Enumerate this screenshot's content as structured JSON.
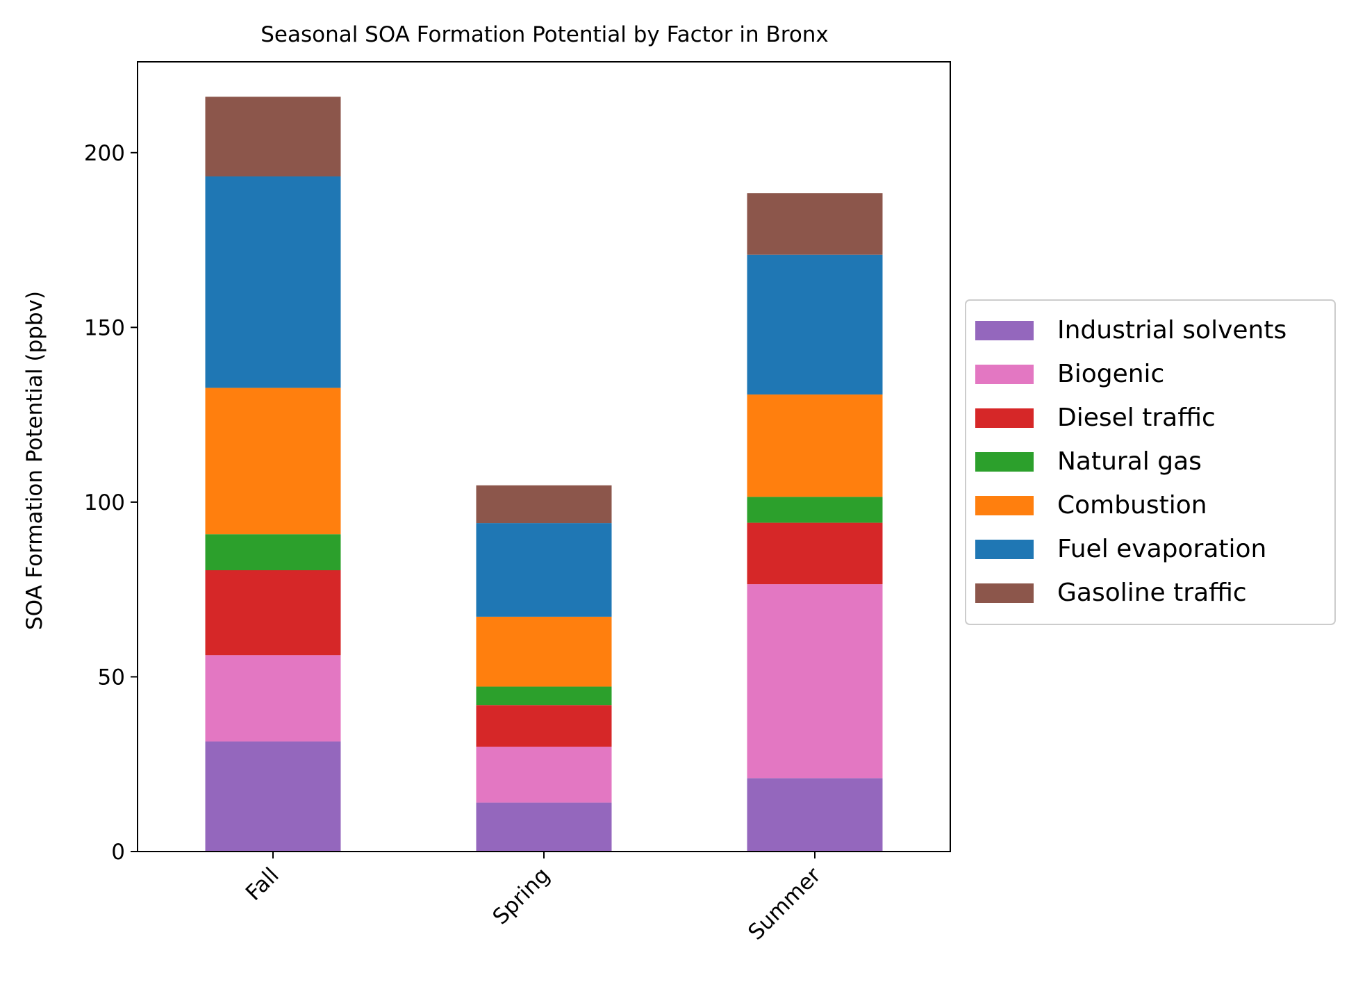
{
  "chart_data": {
    "type": "bar",
    "stacked": true,
    "title": "Seasonal SOA Formation Potential by Factor in Bronx",
    "xlabel": "",
    "ylabel": "SOA Formation Potential (ppbv)",
    "ylim": [
      0,
      226
    ],
    "yticks": [
      0,
      50,
      100,
      150,
      200
    ],
    "grid": false,
    "legend_position": "right",
    "categories": [
      "Fall",
      "Spring",
      "Summer"
    ],
    "series": [
      {
        "name": "Industrial solvents",
        "color": "#9467bd",
        "values": [
          31.5,
          14.0,
          21.0
        ]
      },
      {
        "name": "Biogenic",
        "color": "#e377c2",
        "values": [
          24.7,
          16.0,
          55.5
        ]
      },
      {
        "name": "Diesel traffic",
        "color": "#d62728",
        "values": [
          24.3,
          11.9,
          17.6
        ]
      },
      {
        "name": "Natural gas",
        "color": "#2ca02c",
        "values": [
          10.3,
          5.3,
          7.4
        ]
      },
      {
        "name": "Combustion",
        "color": "#ff7f0e",
        "values": [
          41.9,
          20.0,
          29.3
        ]
      },
      {
        "name": "Fuel evaporation",
        "color": "#1f77b4",
        "values": [
          60.5,
          26.8,
          40.0
        ]
      },
      {
        "name": "Gasoline traffic",
        "color": "#8c564b",
        "values": [
          22.8,
          10.8,
          17.6
        ]
      }
    ]
  }
}
